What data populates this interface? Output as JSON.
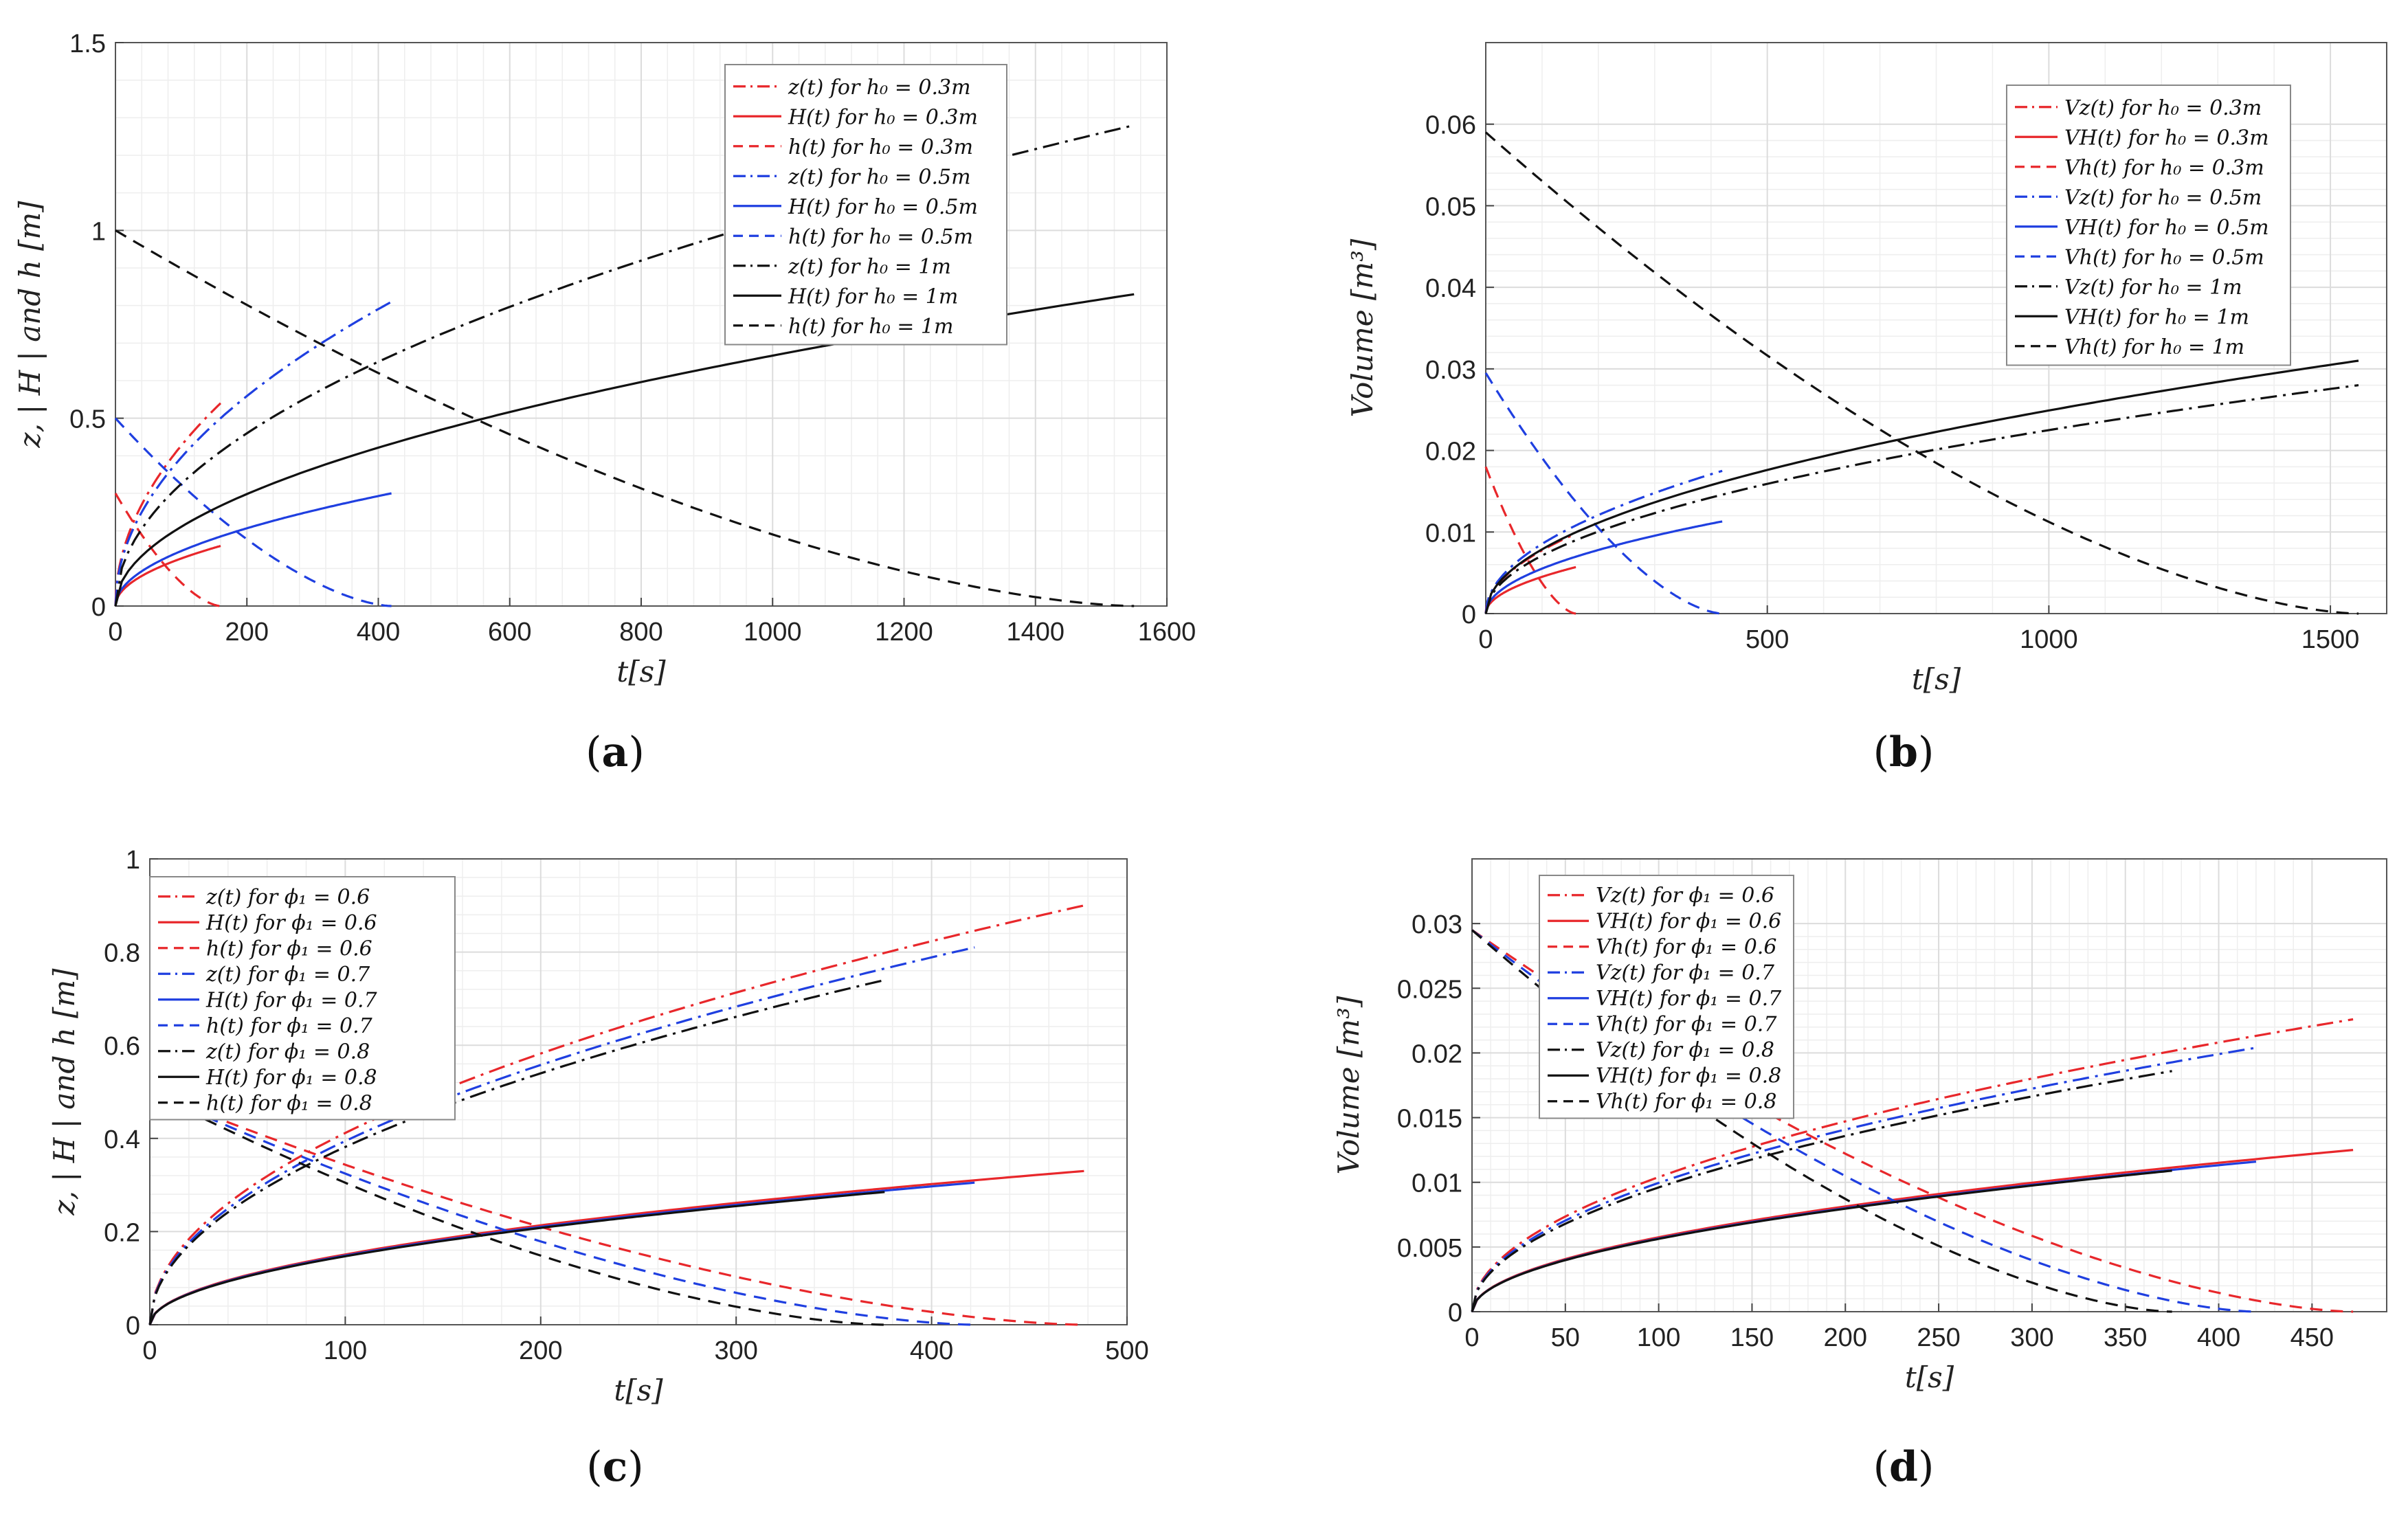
{
  "chart_data": [
    {
      "panel": "a",
      "caption": "a",
      "type": "line",
      "xlabel": "t[s]",
      "ylabel": "z, | H |  and h [m]",
      "xlim": [
        0,
        1600
      ],
      "ylim": [
        0,
        1.5
      ],
      "xticks": [
        0,
        200,
        400,
        600,
        800,
        1000,
        1200,
        1400,
        1600
      ],
      "xtick_labels": [
        "0",
        "200",
        "400",
        "600",
        "800",
        "1000",
        "1200",
        "1400",
        "1600"
      ],
      "yticks": [
        0,
        0.5,
        1,
        1.5
      ],
      "ytick_labels": [
        "0",
        "0.5",
        "1",
        "1.5"
      ],
      "legend_position": "top-right",
      "series": [
        {
          "name": "z(t) for h₀ = 0.3m",
          "color": "#e8272b",
          "style": "dashdot",
          "kind": "rise",
          "tEnd": 160,
          "vEnd": 0.54
        },
        {
          "name": "H(t) for h₀ = 0.3m",
          "color": "#e8272b",
          "style": "solid",
          "kind": "rise",
          "tEnd": 160,
          "vEnd": 0.16
        },
        {
          "name": "h(t) for h₀ = 0.3m",
          "color": "#e8272b",
          "style": "dashed",
          "kind": "fall",
          "tEnd": 160,
          "vStart": 0.3
        },
        {
          "name": "z(t) for h₀ = 0.5m",
          "color": "#1f3fe0",
          "style": "dashdot",
          "kind": "rise",
          "tEnd": 420,
          "vEnd": 0.81
        },
        {
          "name": "H(t) for h₀ = 0.5m",
          "color": "#1f3fe0",
          "style": "solid",
          "kind": "rise",
          "tEnd": 420,
          "vEnd": 0.3
        },
        {
          "name": "h(t) for h₀ = 0.5m",
          "color": "#1f3fe0",
          "style": "dashed",
          "kind": "fall",
          "tEnd": 420,
          "vStart": 0.5
        },
        {
          "name": "z(t) for h₀ = 1m",
          "color": "#111111",
          "style": "dashdot",
          "kind": "rise",
          "tEnd": 1550,
          "vEnd": 1.28
        },
        {
          "name": "H(t) for h₀ = 1m",
          "color": "#111111",
          "style": "solid",
          "kind": "rise",
          "tEnd": 1550,
          "vEnd": 0.83
        },
        {
          "name": "h(t) for h₀ = 1m",
          "color": "#111111",
          "style": "dashed",
          "kind": "fall",
          "tEnd": 1550,
          "vStart": 1.0
        }
      ]
    },
    {
      "panel": "b",
      "caption": "b",
      "type": "line",
      "xlabel": "t[s]",
      "ylabel": "Volume [m³]",
      "xlim": [
        0,
        1600
      ],
      "ylim": [
        0,
        0.07
      ],
      "xticks": [
        0,
        500,
        1000,
        1500
      ],
      "xtick_labels": [
        "0",
        "500",
        "1000",
        "1500"
      ],
      "yticks": [
        0,
        0.01,
        0.02,
        0.03,
        0.04,
        0.05,
        0.06
      ],
      "ytick_labels": [
        "0",
        "0.01",
        "0.02",
        "0.03",
        "0.04",
        "0.05",
        "0.06"
      ],
      "legend_position": "top-right",
      "series": [
        {
          "name": "Vz(t) for h₀ = 0.3m",
          "color": "#e8272b",
          "style": "dashdot",
          "kind": "rise",
          "tEnd": 160,
          "vEnd": 0.0098
        },
        {
          "name": "VH(t) for h₀ = 0.3m",
          "color": "#e8272b",
          "style": "solid",
          "kind": "rise",
          "tEnd": 160,
          "vEnd": 0.0057
        },
        {
          "name": "Vh(t) for h₀ = 0.3m",
          "color": "#e8272b",
          "style": "dashed",
          "kind": "fall",
          "tEnd": 160,
          "vStart": 0.018
        },
        {
          "name": "Vz(t) for h₀ = 0.5m",
          "color": "#1f3fe0",
          "style": "dashdot",
          "kind": "rise",
          "tEnd": 420,
          "vEnd": 0.0175
        },
        {
          "name": "VH(t) for h₀ = 0.5m",
          "color": "#1f3fe0",
          "style": "solid",
          "kind": "rise",
          "tEnd": 420,
          "vEnd": 0.0113
        },
        {
          "name": "Vh(t) for h₀ = 0.5m",
          "color": "#1f3fe0",
          "style": "dashed",
          "kind": "fall",
          "tEnd": 420,
          "vStart": 0.0295
        },
        {
          "name": "Vz(t) for h₀ = 1m",
          "color": "#111111",
          "style": "dashdot",
          "kind": "rise",
          "tEnd": 1550,
          "vEnd": 0.028
        },
        {
          "name": "VH(t) for h₀ = 1m",
          "color": "#111111",
          "style": "solid",
          "kind": "rise",
          "tEnd": 1550,
          "vEnd": 0.031
        },
        {
          "name": "Vh(t) for h₀ = 1m",
          "color": "#111111",
          "style": "dashed",
          "kind": "fall",
          "tEnd": 1550,
          "vStart": 0.059
        }
      ]
    },
    {
      "panel": "c",
      "caption": "c",
      "type": "line",
      "xlabel": "t[s]",
      "ylabel": "z, | H |  and h [m]",
      "xlim": [
        0,
        500
      ],
      "ylim": [
        0,
        1
      ],
      "xticks": [
        0,
        100,
        200,
        300,
        400,
        500
      ],
      "xtick_labels": [
        "0",
        "100",
        "200",
        "300",
        "400",
        "500"
      ],
      "yticks": [
        0,
        0.2,
        0.4,
        0.6,
        0.8,
        1
      ],
      "ytick_labels": [
        "0",
        "0.2",
        "0.4",
        "0.6",
        "0.8",
        "1"
      ],
      "legend_position": "top-left",
      "series": [
        {
          "name": "z(t) for ϕ₁ = 0.6",
          "color": "#e8272b",
          "style": "dashdot",
          "kind": "rise",
          "tEnd": 478,
          "vEnd": 0.9
        },
        {
          "name": "H(t) for ϕ₁ = 0.6",
          "color": "#e8272b",
          "style": "solid",
          "kind": "rise",
          "tEnd": 478,
          "vEnd": 0.33
        },
        {
          "name": "h(t) for ϕ₁ = 0.6",
          "color": "#e8272b",
          "style": "dashed",
          "kind": "fall",
          "tEnd": 478,
          "vStart": 0.5
        },
        {
          "name": "z(t) for ϕ₁ = 0.7",
          "color": "#1f3fe0",
          "style": "dashdot",
          "kind": "rise",
          "tEnd": 422,
          "vEnd": 0.81
        },
        {
          "name": "H(t) for ϕ₁ = 0.7",
          "color": "#1f3fe0",
          "style": "solid",
          "kind": "rise",
          "tEnd": 422,
          "vEnd": 0.305
        },
        {
          "name": "h(t) for ϕ₁ = 0.7",
          "color": "#1f3fe0",
          "style": "dashed",
          "kind": "fall",
          "tEnd": 422,
          "vStart": 0.5
        },
        {
          "name": "z(t) for ϕ₁ = 0.8",
          "color": "#111111",
          "style": "dashdot",
          "kind": "rise",
          "tEnd": 376,
          "vEnd": 0.74
        },
        {
          "name": "H(t) for ϕ₁ = 0.8",
          "color": "#111111",
          "style": "solid",
          "kind": "rise",
          "tEnd": 376,
          "vEnd": 0.285
        },
        {
          "name": "h(t) for ϕ₁ = 0.8",
          "color": "#111111",
          "style": "dashed",
          "kind": "fall",
          "tEnd": 376,
          "vStart": 0.5
        }
      ]
    },
    {
      "panel": "d",
      "caption": "d",
      "type": "line",
      "xlabel": "t[s]",
      "ylabel": "Volume [m³]",
      "xlim": [
        0,
        490
      ],
      "ylim": [
        0,
        0.035
      ],
      "xticks": [
        0,
        50,
        100,
        150,
        200,
        250,
        300,
        350,
        400,
        450
      ],
      "xtick_labels": [
        "0",
        "50",
        "100",
        "150",
        "200",
        "250",
        "300",
        "350",
        "400",
        "450"
      ],
      "yticks": [
        0,
        0.005,
        0.01,
        0.015,
        0.02,
        0.025,
        0.03
      ],
      "ytick_labels": [
        "0",
        "0.005",
        "0.01",
        "0.015",
        "0.02",
        "0.025",
        "0.03"
      ],
      "legend_position": "top-left",
      "series": [
        {
          "name": "Vz(t) for ϕ₁ = 0.6",
          "color": "#e8272b",
          "style": "dashdot",
          "kind": "rise",
          "tEnd": 472,
          "vEnd": 0.0226
        },
        {
          "name": "VH(t) for ϕ₁ = 0.6",
          "color": "#e8272b",
          "style": "solid",
          "kind": "rise",
          "tEnd": 472,
          "vEnd": 0.0125
        },
        {
          "name": "Vh(t) for ϕ₁ = 0.6",
          "color": "#e8272b",
          "style": "dashed",
          "kind": "fall",
          "tEnd": 472,
          "vStart": 0.0295
        },
        {
          "name": "Vz(t) for ϕ₁ = 0.7",
          "color": "#1f3fe0",
          "style": "dashdot",
          "kind": "rise",
          "tEnd": 420,
          "vEnd": 0.0204
        },
        {
          "name": "VH(t) for ϕ₁ = 0.7",
          "color": "#1f3fe0",
          "style": "solid",
          "kind": "rise",
          "tEnd": 420,
          "vEnd": 0.0116
        },
        {
          "name": "Vh(t) for ϕ₁ = 0.7",
          "color": "#1f3fe0",
          "style": "dashed",
          "kind": "fall",
          "tEnd": 420,
          "vStart": 0.0295
        },
        {
          "name": "Vz(t) for ϕ₁ = 0.8",
          "color": "#111111",
          "style": "dashdot",
          "kind": "rise",
          "tEnd": 375,
          "vEnd": 0.0186
        },
        {
          "name": "VH(t) for ϕ₁ = 0.8",
          "color": "#111111",
          "style": "solid",
          "kind": "rise",
          "tEnd": 375,
          "vEnd": 0.0109
        },
        {
          "name": "Vh(t) for ϕ₁ = 0.8",
          "color": "#111111",
          "style": "dashed",
          "kind": "fall",
          "tEnd": 375,
          "vStart": 0.0295
        }
      ]
    }
  ]
}
